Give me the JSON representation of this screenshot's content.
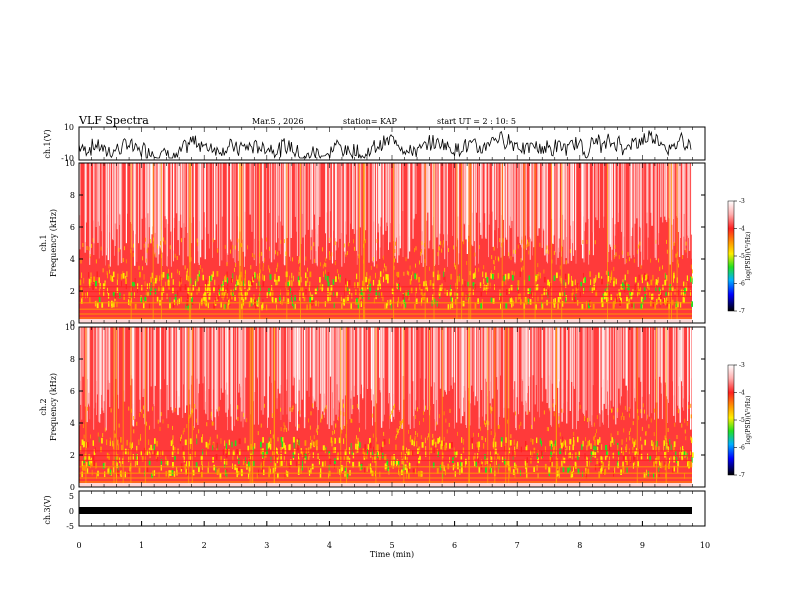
{
  "header": {
    "title": "VLF Spectra",
    "date": "Mar.5 , 2026",
    "station": "station= KAP",
    "start": "start  UT =   2 : 10: 5"
  },
  "chart_data": [
    {
      "id": "ch1-waveform",
      "type": "line",
      "ylabel": "ch.1(V)",
      "ylim": [
        -10,
        10
      ],
      "yticks": [
        "10",
        "-10"
      ],
      "xlim": [
        0,
        10
      ]
    },
    {
      "id": "ch1-spectrogram",
      "type": "heatmap",
      "ylabel": "ch.1\nFrequency (kHz)",
      "ylim": [
        0,
        10
      ],
      "yticks": [
        "0",
        "2",
        "4",
        "6",
        "8",
        "10"
      ],
      "xlim": [
        0,
        10
      ],
      "colorbar": {
        "label": "log(PSD)(V²/Hz)",
        "ticks": [
          "-3",
          "-4",
          "-5",
          "-6",
          "-7"
        ],
        "range": [
          -7,
          -3
        ]
      }
    },
    {
      "id": "ch2-spectrogram",
      "type": "heatmap",
      "ylabel": "ch.2\nFrequency (kHz)",
      "ylim": [
        0,
        10
      ],
      "yticks": [
        "0",
        "2",
        "4",
        "6",
        "8",
        "10"
      ],
      "xlim": [
        0,
        10
      ],
      "colorbar": {
        "label": "log(PSD)(V²/Hz)",
        "ticks": [
          "-3",
          "-4",
          "-5",
          "-6",
          "-7"
        ],
        "range": [
          -7,
          -3
        ]
      }
    },
    {
      "id": "ch3-waveform",
      "type": "line",
      "ylabel": "ch.3(V)",
      "ylim": [
        -5,
        5
      ],
      "yticks": [
        "5",
        "-5"
      ],
      "xlim": [
        0,
        10
      ]
    }
  ],
  "xaxis": {
    "label": "Time (min)",
    "ticks": [
      "0",
      "1",
      "2",
      "3",
      "4",
      "5",
      "6",
      "7",
      "8",
      "9",
      "10"
    ]
  },
  "colors": {
    "red": "#ff2020",
    "orange": "#ff9a00",
    "yellow": "#ffee00",
    "green": "#22e022",
    "blue": "#0000ff",
    "black": "#000000"
  }
}
